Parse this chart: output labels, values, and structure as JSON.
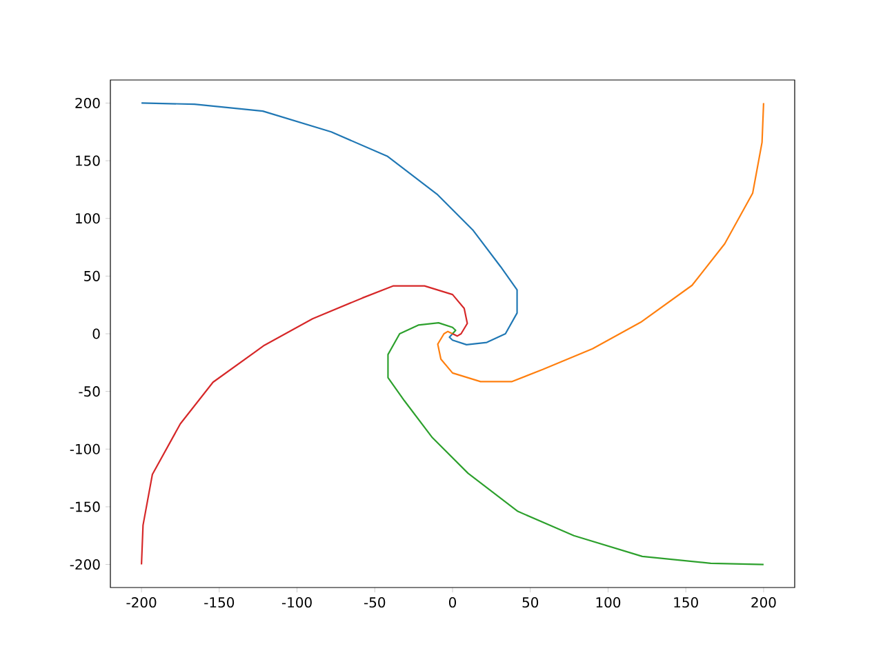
{
  "chart_data": {
    "type": "line",
    "xlim": [
      -220,
      220
    ],
    "ylim": [
      -220,
      220
    ],
    "xticks": [
      -200,
      -150,
      -100,
      -50,
      0,
      50,
      100,
      150,
      200
    ],
    "yticks": [
      -200,
      -150,
      -100,
      -50,
      0,
      50,
      100,
      150,
      200
    ],
    "series": [
      {
        "color": "#1f77b4",
        "x": [
          -200,
          -166,
          -122,
          -78,
          -42,
          -10,
          13,
          31,
          41.5,
          41.5,
          34,
          22,
          9,
          0,
          -2,
          0
        ],
        "values": [
          200,
          199,
          193,
          175,
          154,
          121,
          90,
          58,
          38,
          18,
          0,
          -7.5,
          -9.5,
          -5.5,
          -3,
          0
        ]
      },
      {
        "color": "#ff7f0e",
        "x": [
          200,
          199,
          193,
          175,
          154,
          121,
          90,
          58,
          38,
          18,
          0,
          -7.5,
          -9.5,
          -5.5,
          -3,
          0
        ],
        "values": [
          200,
          166,
          122,
          78,
          42,
          10,
          -13,
          -31,
          -41.5,
          -41.5,
          -34,
          -22,
          -9,
          0,
          2,
          0
        ]
      },
      {
        "color": "#2ca02c",
        "x": [
          200,
          166,
          122,
          78,
          42,
          10,
          -13,
          -31,
          -41.5,
          -41.5,
          -34,
          -22,
          -9,
          0,
          2,
          0
        ],
        "values": [
          -200,
          -199,
          -193,
          -175,
          -154,
          -121,
          -90,
          -58,
          -38,
          -18,
          0,
          7.5,
          9.5,
          5.5,
          3,
          0
        ]
      },
      {
        "color": "#d62728",
        "x": [
          -200,
          -199,
          -193,
          -175,
          -154,
          -121,
          -90,
          -58,
          -38,
          -18,
          0,
          7.5,
          9.5,
          5.5,
          3,
          0
        ],
        "values": [
          -200,
          -166,
          -122,
          -78,
          -42,
          -10,
          13,
          31,
          41.5,
          41.5,
          34,
          22,
          9,
          0,
          -2,
          0
        ]
      }
    ]
  }
}
